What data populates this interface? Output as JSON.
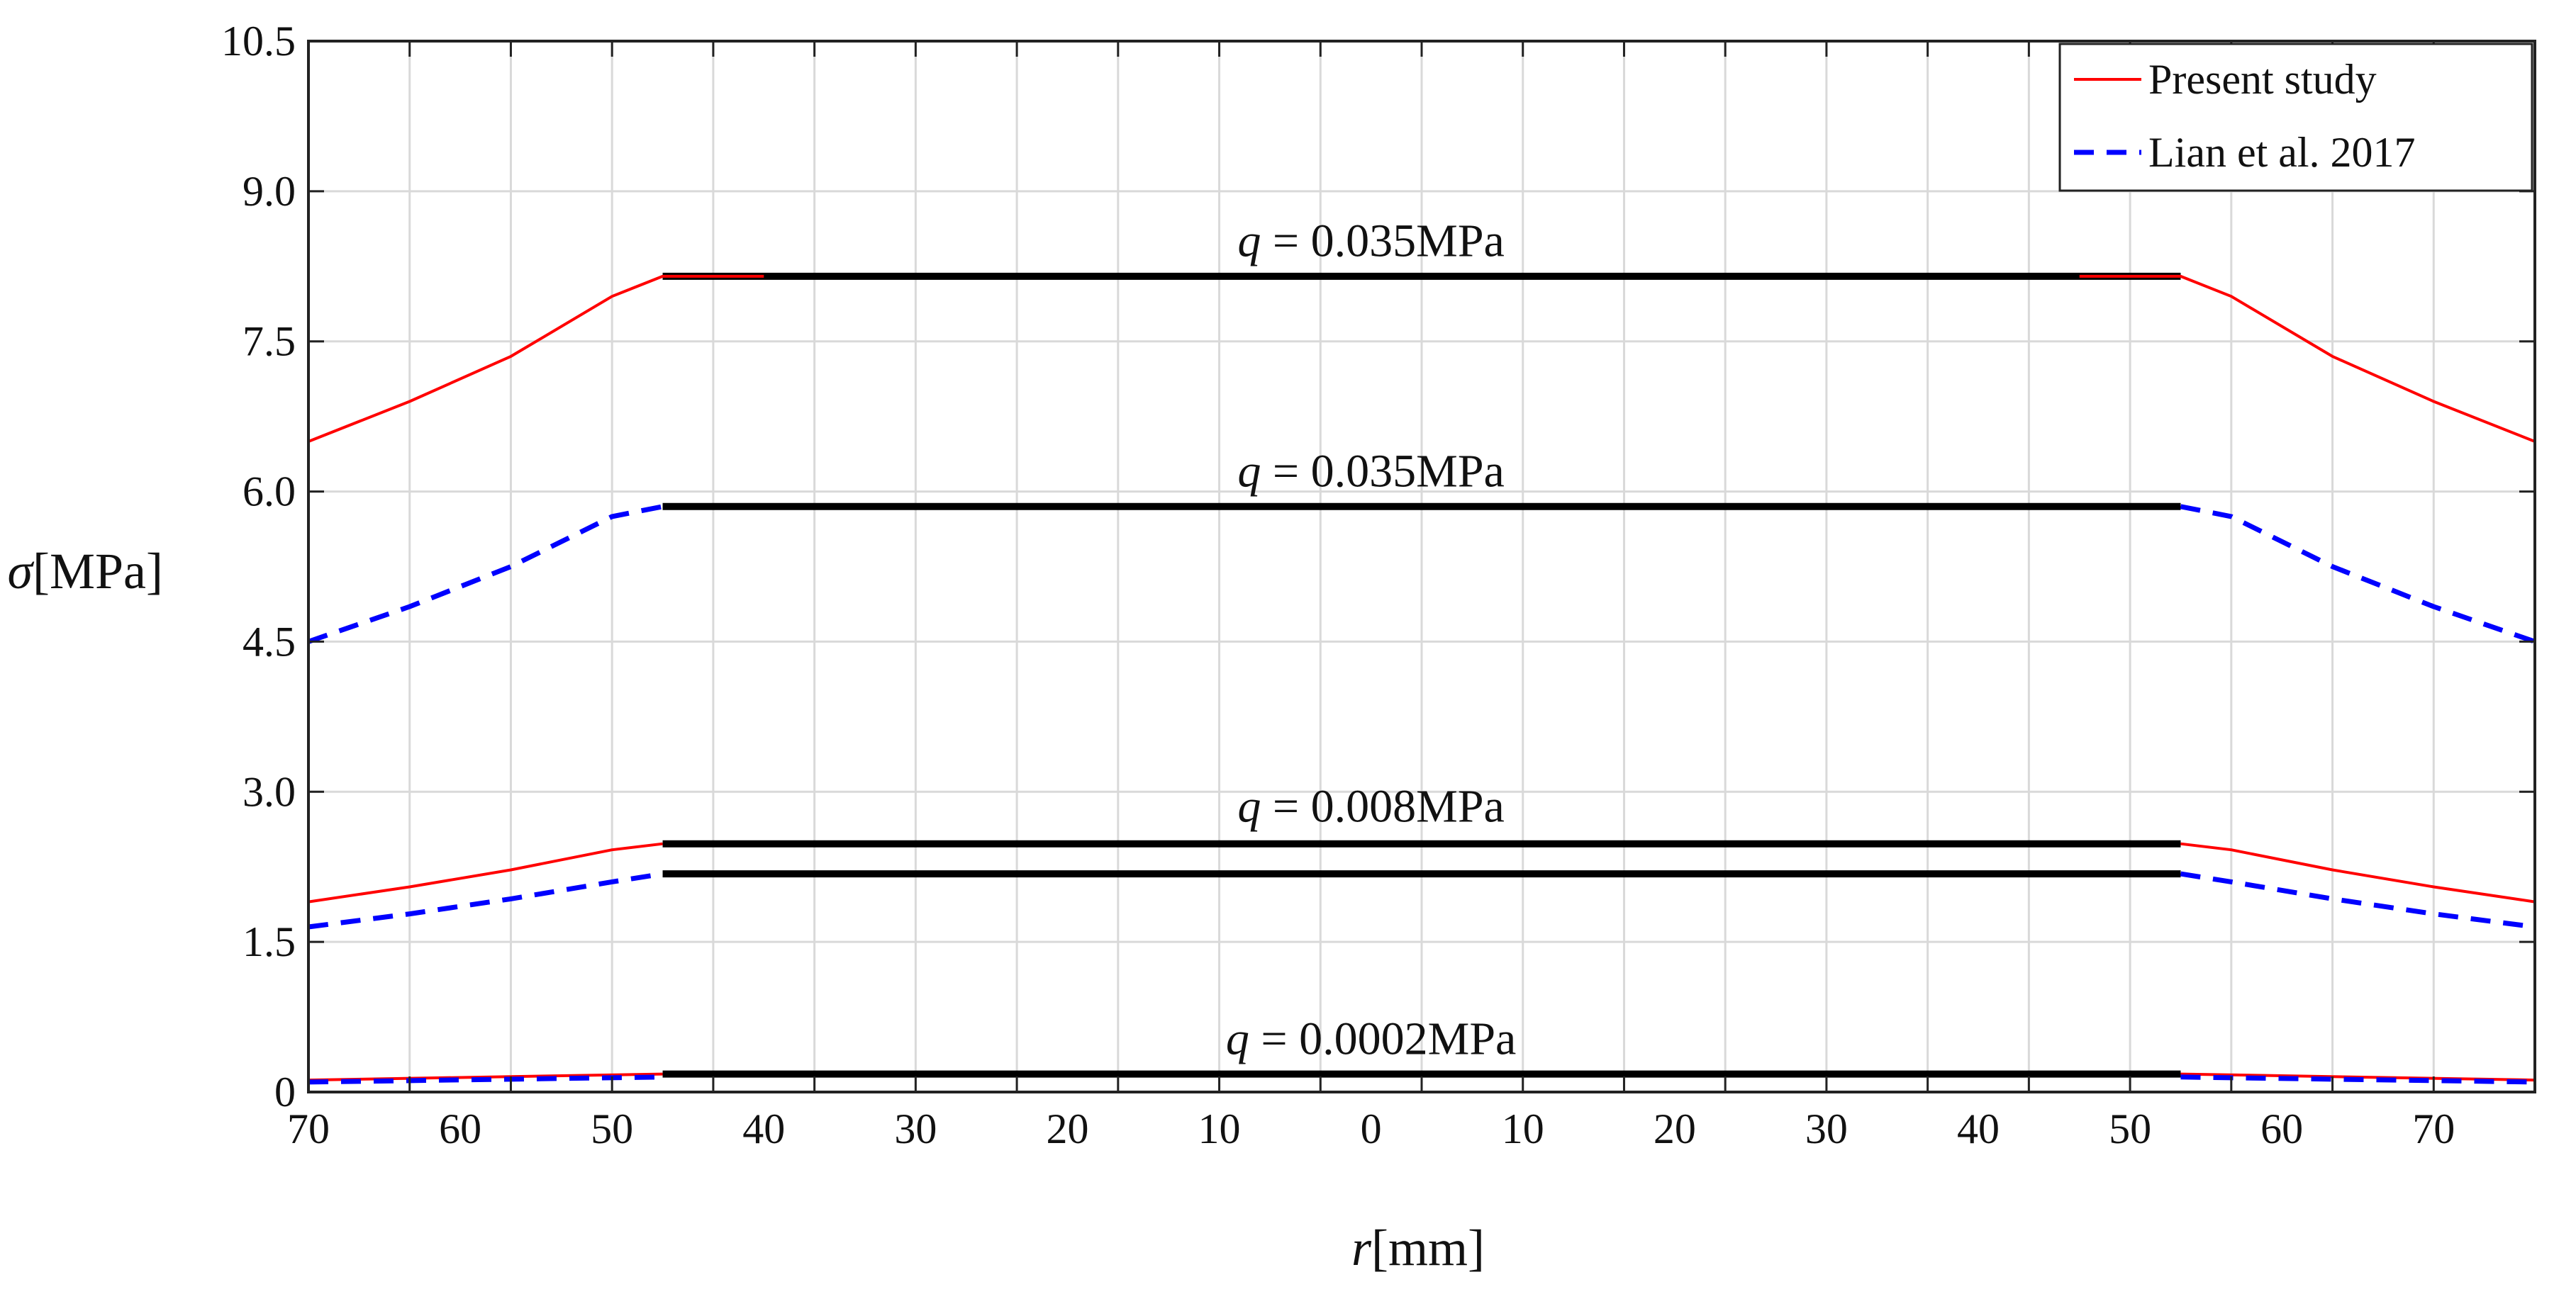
{
  "chart_data": {
    "type": "line",
    "title": "",
    "xlabel": {
      "italic": "r",
      "unit": "[mm]"
    },
    "ylabel": {
      "italic": "σ",
      "unit": "[MPa]"
    },
    "x_domain": [
      -110,
      110
    ],
    "x_ticks": [
      -110,
      -100,
      -90,
      -80,
      -70,
      -60,
      -50,
      -40,
      -30,
      -20,
      -10,
      0,
      10,
      20,
      30,
      40,
      50,
      60,
      70,
      80,
      90,
      100,
      110
    ],
    "x_tick_labels": [
      "70",
      "60",
      "50",
      "40",
      "30",
      "20",
      "10",
      "0",
      "10",
      "20",
      "30",
      "40",
      "50",
      "60",
      "70"
    ],
    "x_tick_label_positions": [
      -110,
      -95,
      -80,
      -65,
      -50,
      -35,
      -20,
      -5,
      10,
      25,
      40,
      55,
      70,
      85,
      100
    ],
    "ylim": [
      0,
      10.5
    ],
    "y_ticks": [
      0,
      1.5,
      3.0,
      4.5,
      6.0,
      7.5,
      9.0,
      10.5
    ],
    "y_tick_labels": [
      "0",
      "1.5",
      "3.0",
      "4.5",
      "6.0",
      "7.5",
      "9.0",
      "10.5"
    ],
    "grid": true,
    "legend": {
      "placement": "top-right",
      "entries": [
        {
          "name": "Present study",
          "color": "#ff0000",
          "style": "solid"
        },
        {
          "name": "Lian et al. 2017",
          "color": "#0000ff",
          "style": "dashed"
        }
      ]
    },
    "series": [
      {
        "name": "Present study",
        "load": "q = 0.035MPa",
        "color": "#ff0000",
        "style": "solid",
        "x": [
          -110,
          -100,
          -90,
          -80,
          -75,
          -70,
          -65
        ],
        "y": [
          6.5,
          6.9,
          7.35,
          7.95,
          8.15,
          8.15,
          8.15
        ]
      },
      {
        "name": "Present study",
        "load": "q = 0.035MPa",
        "color": "#ff0000",
        "style": "solid",
        "x": [
          65,
          70,
          75,
          80,
          90,
          100,
          110
        ],
        "y": [
          8.15,
          8.15,
          8.15,
          7.95,
          7.35,
          6.9,
          6.5
        ]
      },
      {
        "name": "Lian et al. 2017",
        "load": "q = 0.035MPa",
        "color": "#0000ff",
        "style": "dashed",
        "x": [
          -110,
          -100,
          -90,
          -80,
          -75
        ],
        "y": [
          4.5,
          4.85,
          5.25,
          5.75,
          5.85
        ]
      },
      {
        "name": "Lian et al. 2017",
        "load": "q = 0.035MPa",
        "color": "#0000ff",
        "style": "dashed",
        "x": [
          75,
          80,
          90,
          100,
          110
        ],
        "y": [
          5.85,
          5.75,
          5.25,
          4.85,
          4.5
        ]
      },
      {
        "name": "Present study",
        "load": "q = 0.008MPa",
        "color": "#ff0000",
        "style": "solid",
        "x": [
          -110,
          -100,
          -90,
          -80,
          -75
        ],
        "y": [
          1.9,
          2.05,
          2.22,
          2.42,
          2.48
        ]
      },
      {
        "name": "Present study",
        "load": "q = 0.008MPa",
        "color": "#ff0000",
        "style": "solid",
        "x": [
          75,
          80,
          90,
          100,
          110
        ],
        "y": [
          2.48,
          2.42,
          2.22,
          2.05,
          1.9
        ]
      },
      {
        "name": "Lian et al. 2017",
        "load": "q = 0.008MPa",
        "color": "#0000ff",
        "style": "dashed",
        "x": [
          -110,
          -100,
          -90,
          -80,
          -75
        ],
        "y": [
          1.65,
          1.78,
          1.93,
          2.1,
          2.18
        ]
      },
      {
        "name": "Lian et al. 2017",
        "load": "q = 0.008MPa",
        "color": "#0000ff",
        "style": "dashed",
        "x": [
          75,
          80,
          90,
          100,
          110
        ],
        "y": [
          2.18,
          2.1,
          1.93,
          1.78,
          1.65
        ]
      },
      {
        "name": "Present study",
        "load": "q = 0.0002MPa",
        "color": "#ff0000",
        "style": "solid",
        "x": [
          -110,
          -75
        ],
        "y": [
          0.12,
          0.18
        ]
      },
      {
        "name": "Present study",
        "load": "q = 0.0002MPa",
        "color": "#ff0000",
        "style": "solid",
        "x": [
          75,
          110
        ],
        "y": [
          0.18,
          0.12
        ]
      },
      {
        "name": "Lian et al. 2017",
        "load": "q = 0.0002MPa",
        "color": "#0000ff",
        "style": "dashed",
        "x": [
          -110,
          -75
        ],
        "y": [
          0.1,
          0.15
        ]
      },
      {
        "name": "Lian et al. 2017",
        "load": "q = 0.0002MPa",
        "color": "#0000ff",
        "style": "dashed",
        "x": [
          75,
          110
        ],
        "y": [
          0.15,
          0.1
        ]
      }
    ],
    "plateaus": [
      {
        "x": [
          -75,
          75
        ],
        "y": 8.15
      },
      {
        "x": [
          -75,
          75
        ],
        "y": 5.85
      },
      {
        "x": [
          -75,
          75
        ],
        "y": 2.48
      },
      {
        "x": [
          -75,
          75
        ],
        "y": 2.18
      },
      {
        "x": [
          -75,
          75
        ],
        "y": 0.18
      }
    ],
    "annotations": [
      {
        "q": "q",
        "value": "= 0.035MPa",
        "x": -5,
        "y": 8.35
      },
      {
        "q": "q",
        "value": "= 0.035MPa",
        "x": -5,
        "y": 6.05
      },
      {
        "q": "q",
        "value": "= 0.008MPa",
        "x": -5,
        "y": 2.7
      },
      {
        "q": "q",
        "value": "= 0.0002MPa",
        "x": -5,
        "y": 0.38
      }
    ]
  }
}
